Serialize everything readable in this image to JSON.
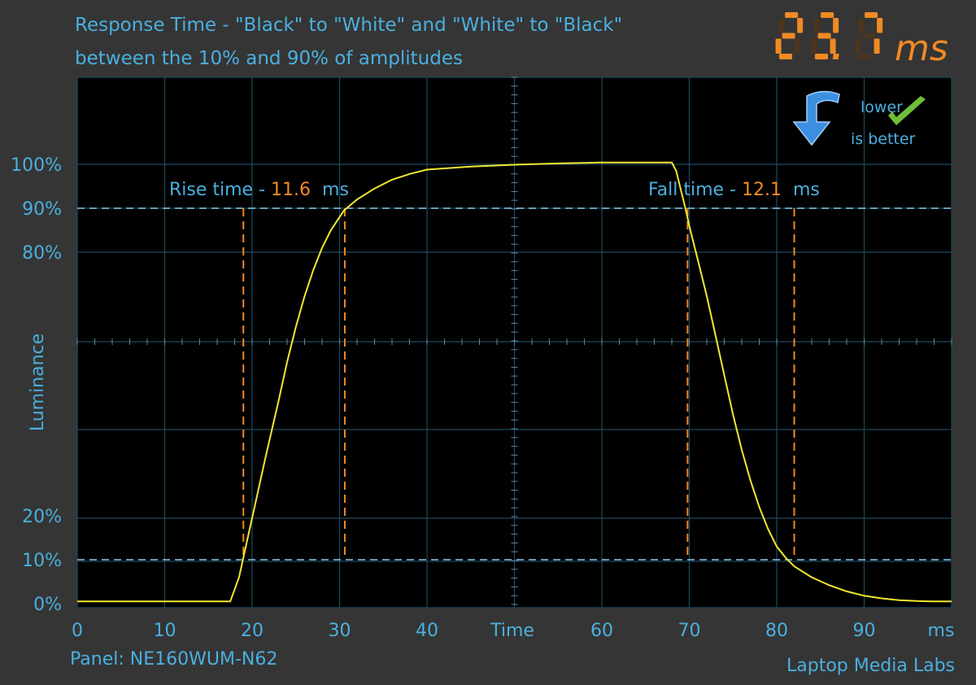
{
  "chart_data": {
    "type": "line",
    "title": "Response Time - \"Black\" to \"White\" and \"White\" to \"Black\"",
    "subtitle": "between the 10% and 90% of amplitudes",
    "xlabel": "Time",
    "ylabel": "Luminance",
    "xlim": [
      0,
      100
    ],
    "ylim": [
      0,
      100
    ],
    "x_tick_labels": [
      "0",
      "10",
      "20",
      "30",
      "40",
      "",
      "60",
      "70",
      "80",
      "90"
    ],
    "x_unit_label": "ms",
    "y_tick_labels": [
      {
        "value": 0,
        "label": "0%"
      },
      {
        "value": 10,
        "label": "10%"
      },
      {
        "value": 20,
        "label": "20%"
      },
      {
        "value": 80,
        "label": "80%"
      },
      {
        "value": 90,
        "label": "90%"
      },
      {
        "value": 100,
        "label": "100%"
      }
    ],
    "grid": true,
    "threshold_lines": [
      10,
      90
    ],
    "series": [
      {
        "color": "#f2e830",
        "x": [
          0,
          17.5,
          18.5,
          19.5,
          20.5,
          21.5,
          23,
          24,
          25,
          26,
          27,
          28,
          29,
          30.5,
          32,
          34,
          36,
          38,
          40,
          45,
          50,
          55,
          60,
          65,
          68,
          68.5,
          69,
          69.5,
          70,
          70.5,
          71,
          72,
          73,
          74,
          75,
          76,
          77,
          78,
          79,
          80,
          81,
          82,
          84,
          86,
          88,
          90,
          92,
          94,
          96,
          98,
          100
        ],
        "y": [
          0.5,
          0.5,
          6,
          15,
          24,
          33,
          46,
          55,
          63,
          70,
          76,
          81,
          85,
          89.5,
          92,
          94.5,
          96.5,
          97.8,
          98.8,
          99.5,
          99.9,
          100.2,
          100.4,
          100.4,
          100.4,
          98.5,
          94.5,
          90.5,
          86,
          82,
          78,
          70,
          61,
          52,
          43,
          35,
          28,
          22,
          17,
          13,
          10.5,
          8.5,
          6,
          4.2,
          2.8,
          1.8,
          1.2,
          0.8,
          0.6,
          0.5,
          0.5
        ]
      }
    ],
    "annotations": {
      "rise": {
        "label": "Rise time - ",
        "value": "11.6",
        "unit": "ms",
        "start": 19,
        "end": 30.6
      },
      "fall": {
        "label": "Fall time - ",
        "value": "12.1",
        "unit": "ms",
        "start": 69.8,
        "end": 82
      }
    },
    "total_time": {
      "value": "23.7",
      "unit": "ms"
    },
    "badge": {
      "line1": "lower",
      "line2": "is better",
      "icon": "down-arrow-icon"
    },
    "panel_label": "Panel: NE160WUM-N62",
    "credit": "Laptop Media Labs",
    "colors": {
      "background": "#353535",
      "plot": "#000000",
      "grid": "#1f4a60",
      "text": "#4ab0e0",
      "accent": "#f08a24",
      "curve": "#f2e830"
    }
  }
}
